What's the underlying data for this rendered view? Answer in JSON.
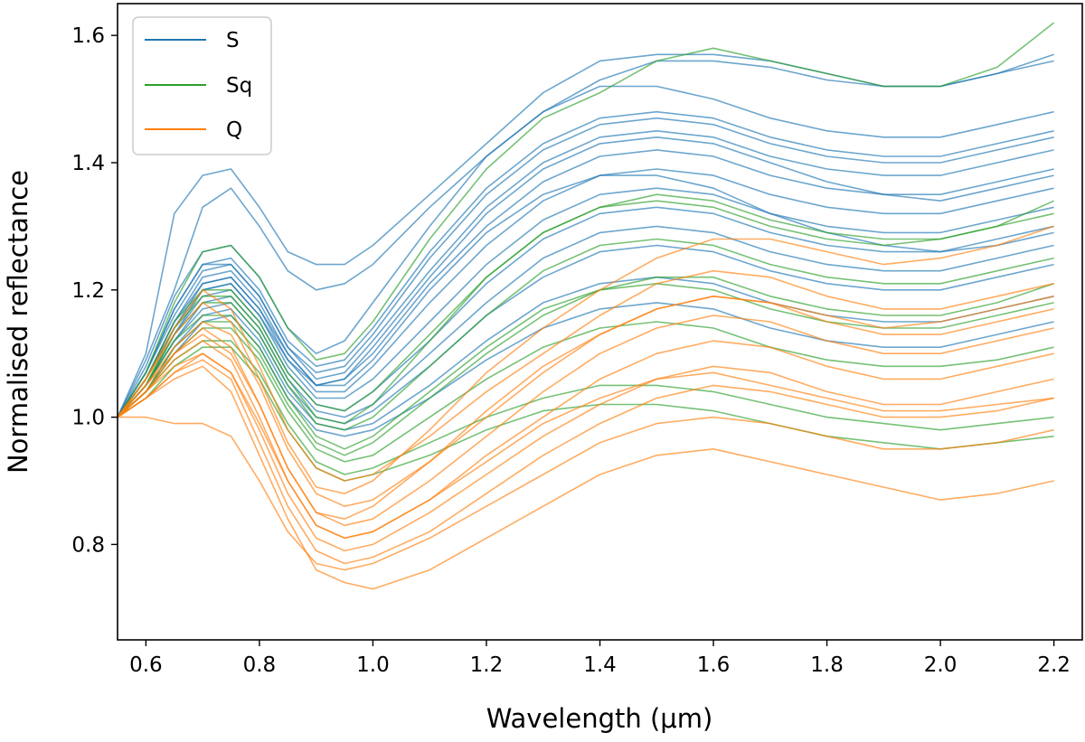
{
  "chart_data": {
    "type": "line",
    "title": "",
    "xlabel": "Wavelength (μm)",
    "ylabel": "Normalised reflectance",
    "xlim": [
      0.55,
      2.25
    ],
    "ylim": [
      0.65,
      1.65
    ],
    "xticks": [
      0.6,
      0.8,
      1.0,
      1.2,
      1.4,
      1.6,
      1.8,
      2.0,
      2.2
    ],
    "xtick_labels": [
      "0.6",
      "0.8",
      "1.0",
      "1.2",
      "1.4",
      "1.6",
      "1.8",
      "2.0",
      "2.2"
    ],
    "yticks": [
      0.8,
      1.0,
      1.2,
      1.4,
      1.6
    ],
    "ytick_labels": [
      "0.8",
      "1.0",
      "1.2",
      "1.4",
      "1.6"
    ],
    "grid": false,
    "legend": {
      "location": "top-left",
      "entries": [
        {
          "label": "S",
          "color": "#1f77b4"
        },
        {
          "label": "Sq",
          "color": "#2ca02c"
        },
        {
          "label": "Q",
          "color": "#ff7f0e"
        }
      ]
    },
    "x": [
      0.55,
      0.6,
      0.65,
      0.7,
      0.75,
      0.8,
      0.85,
      0.9,
      0.95,
      1.0,
      1.1,
      1.2,
      1.3,
      1.4,
      1.5,
      1.6,
      1.7,
      1.8,
      1.9,
      2.0,
      2.1,
      2.2
    ],
    "series": [
      {
        "name": "S",
        "class": "S",
        "color": "#1f77b4",
        "values": [
          1.0,
          1.1,
          1.32,
          1.38,
          1.39,
          1.33,
          1.26,
          1.24,
          1.24,
          1.27,
          1.35,
          1.43,
          1.51,
          1.56,
          1.57,
          1.57,
          1.56,
          1.54,
          1.52,
          1.52,
          1.54,
          1.57
        ]
      },
      {
        "name": "S",
        "class": "S",
        "color": "#1f77b4",
        "values": [
          1.0,
          1.09,
          1.2,
          1.33,
          1.36,
          1.3,
          1.23,
          1.2,
          1.21,
          1.24,
          1.33,
          1.41,
          1.48,
          1.53,
          1.56,
          1.56,
          1.55,
          1.53,
          1.52,
          1.52,
          1.54,
          1.56
        ]
      },
      {
        "name": "S",
        "class": "S",
        "color": "#1f77b4",
        "values": [
          1.0,
          1.08,
          1.19,
          1.26,
          1.27,
          1.22,
          1.14,
          1.1,
          1.12,
          1.18,
          1.3,
          1.41,
          1.48,
          1.52,
          1.52,
          1.5,
          1.47,
          1.45,
          1.44,
          1.44,
          1.46,
          1.48
        ]
      },
      {
        "name": "S",
        "class": "S",
        "color": "#1f77b4",
        "values": [
          1.0,
          1.07,
          1.17,
          1.24,
          1.25,
          1.2,
          1.12,
          1.08,
          1.09,
          1.14,
          1.26,
          1.36,
          1.43,
          1.47,
          1.48,
          1.47,
          1.44,
          1.42,
          1.41,
          1.41,
          1.43,
          1.45
        ]
      },
      {
        "name": "S",
        "class": "S",
        "color": "#1f77b4",
        "values": [
          1.0,
          1.07,
          1.16,
          1.23,
          1.24,
          1.19,
          1.11,
          1.06,
          1.07,
          1.12,
          1.23,
          1.33,
          1.4,
          1.44,
          1.45,
          1.44,
          1.41,
          1.39,
          1.38,
          1.38,
          1.4,
          1.42
        ]
      },
      {
        "name": "S",
        "class": "S",
        "color": "#1f77b4",
        "values": [
          1.0,
          1.06,
          1.15,
          1.22,
          1.23,
          1.18,
          1.1,
          1.05,
          1.06,
          1.1,
          1.21,
          1.3,
          1.37,
          1.41,
          1.42,
          1.41,
          1.38,
          1.36,
          1.35,
          1.35,
          1.37,
          1.39
        ]
      },
      {
        "name": "S",
        "class": "S",
        "color": "#1f77b4",
        "values": [
          1.0,
          1.06,
          1.14,
          1.21,
          1.22,
          1.17,
          1.09,
          1.04,
          1.04,
          1.08,
          1.18,
          1.27,
          1.34,
          1.38,
          1.39,
          1.38,
          1.35,
          1.33,
          1.32,
          1.32,
          1.34,
          1.36
        ]
      },
      {
        "name": "S",
        "class": "S",
        "color": "#1f77b4",
        "values": [
          1.0,
          1.06,
          1.14,
          1.2,
          1.21,
          1.16,
          1.08,
          1.03,
          1.03,
          1.06,
          1.15,
          1.24,
          1.31,
          1.35,
          1.36,
          1.35,
          1.32,
          1.3,
          1.29,
          1.29,
          1.31,
          1.33
        ]
      },
      {
        "name": "S",
        "class": "S",
        "color": "#1f77b4",
        "values": [
          1.0,
          1.05,
          1.13,
          1.19,
          1.2,
          1.15,
          1.07,
          1.02,
          1.01,
          1.04,
          1.12,
          1.21,
          1.28,
          1.32,
          1.33,
          1.32,
          1.29,
          1.27,
          1.26,
          1.26,
          1.28,
          1.3
        ]
      },
      {
        "name": "S",
        "class": "S",
        "color": "#1f77b4",
        "values": [
          1.0,
          1.05,
          1.12,
          1.18,
          1.19,
          1.14,
          1.06,
          1.01,
          1.0,
          1.02,
          1.1,
          1.18,
          1.25,
          1.29,
          1.3,
          1.29,
          1.26,
          1.24,
          1.23,
          1.23,
          1.25,
          1.27
        ]
      },
      {
        "name": "S",
        "class": "S",
        "color": "#1f77b4",
        "values": [
          1.0,
          1.05,
          1.12,
          1.17,
          1.18,
          1.13,
          1.05,
          1.0,
          0.99,
          1.01,
          1.08,
          1.16,
          1.22,
          1.26,
          1.27,
          1.26,
          1.23,
          1.21,
          1.2,
          1.2,
          1.22,
          1.24
        ]
      },
      {
        "name": "S",
        "class": "S",
        "color": "#1f77b4",
        "values": [
          1.0,
          1.04,
          1.11,
          1.16,
          1.17,
          1.12,
          1.04,
          0.99,
          0.98,
          0.99,
          1.05,
          1.12,
          1.18,
          1.21,
          1.22,
          1.21,
          1.18,
          1.16,
          1.15,
          1.15,
          1.17,
          1.19
        ]
      },
      {
        "name": "S",
        "class": "S",
        "color": "#1f77b4",
        "values": [
          1.0,
          1.04,
          1.1,
          1.15,
          1.16,
          1.11,
          1.03,
          0.98,
          0.97,
          0.98,
          1.03,
          1.09,
          1.14,
          1.17,
          1.18,
          1.17,
          1.14,
          1.12,
          1.11,
          1.11,
          1.13,
          1.15
        ]
      },
      {
        "name": "S",
        "class": "S",
        "color": "#1f77b4",
        "values": [
          1.0,
          1.05,
          1.13,
          1.2,
          1.21,
          1.16,
          1.09,
          1.05,
          1.06,
          1.11,
          1.22,
          1.32,
          1.39,
          1.43,
          1.44,
          1.43,
          1.4,
          1.37,
          1.35,
          1.34,
          1.36,
          1.38
        ]
      },
      {
        "name": "S",
        "class": "S",
        "color": "#1f77b4",
        "values": [
          1.0,
          1.06,
          1.15,
          1.21,
          1.22,
          1.17,
          1.1,
          1.05,
          1.05,
          1.09,
          1.2,
          1.29,
          1.35,
          1.38,
          1.38,
          1.36,
          1.32,
          1.29,
          1.27,
          1.26,
          1.27,
          1.29
        ]
      },
      {
        "name": "S",
        "class": "S",
        "color": "#1f77b4",
        "values": [
          1.0,
          1.07,
          1.17,
          1.24,
          1.24,
          1.19,
          1.11,
          1.07,
          1.08,
          1.13,
          1.25,
          1.35,
          1.42,
          1.46,
          1.47,
          1.46,
          1.43,
          1.41,
          1.4,
          1.4,
          1.42,
          1.44
        ]
      },
      {
        "name": "Sq",
        "class": "Sq",
        "color": "#2ca02c",
        "values": [
          1.0,
          1.07,
          1.18,
          1.26,
          1.27,
          1.22,
          1.14,
          1.09,
          1.1,
          1.15,
          1.28,
          1.39,
          1.47,
          1.51,
          1.56,
          1.58,
          1.56,
          1.54,
          1.52,
          1.52,
          1.55,
          1.62
        ]
      },
      {
        "name": "Sq",
        "class": "Sq",
        "color": "#2ca02c",
        "values": [
          1.0,
          1.06,
          1.15,
          1.2,
          1.2,
          1.15,
          1.07,
          1.02,
          1.01,
          1.04,
          1.13,
          1.22,
          1.29,
          1.33,
          1.35,
          1.34,
          1.31,
          1.29,
          1.28,
          1.28,
          1.3,
          1.32
        ]
      },
      {
        "name": "Sq",
        "class": "Sq",
        "color": "#2ca02c",
        "values": [
          1.0,
          1.05,
          1.13,
          1.18,
          1.18,
          1.13,
          1.05,
          0.99,
          0.98,
          1.0,
          1.08,
          1.16,
          1.23,
          1.27,
          1.28,
          1.27,
          1.24,
          1.22,
          1.21,
          1.21,
          1.23,
          1.25
        ]
      },
      {
        "name": "Sq",
        "class": "Sq",
        "color": "#2ca02c",
        "values": [
          1.0,
          1.05,
          1.12,
          1.16,
          1.16,
          1.11,
          1.03,
          0.97,
          0.95,
          0.97,
          1.04,
          1.11,
          1.17,
          1.2,
          1.21,
          1.2,
          1.17,
          1.15,
          1.14,
          1.14,
          1.16,
          1.18
        ]
      },
      {
        "name": "Sq",
        "class": "Sq",
        "color": "#2ca02c",
        "values": [
          1.0,
          1.04,
          1.1,
          1.14,
          1.14,
          1.09,
          1.01,
          0.95,
          0.93,
          0.94,
          1.0,
          1.06,
          1.11,
          1.14,
          1.15,
          1.14,
          1.11,
          1.09,
          1.08,
          1.08,
          1.09,
          1.11
        ]
      },
      {
        "name": "Sq",
        "class": "Sq",
        "color": "#2ca02c",
        "values": [
          1.0,
          1.04,
          1.09,
          1.12,
          1.12,
          1.07,
          0.99,
          0.93,
          0.91,
          0.92,
          0.96,
          1.0,
          1.03,
          1.05,
          1.05,
          1.04,
          1.02,
          1.0,
          0.99,
          0.98,
          0.99,
          1.0
        ]
      },
      {
        "name": "Sq",
        "class": "Sq",
        "color": "#2ca02c",
        "values": [
          1.0,
          1.03,
          1.08,
          1.11,
          1.11,
          1.06,
          0.98,
          0.92,
          0.9,
          0.91,
          0.94,
          0.98,
          1.01,
          1.02,
          1.02,
          1.01,
          0.99,
          0.97,
          0.96,
          0.95,
          0.96,
          0.97
        ]
      },
      {
        "name": "Sq",
        "class": "Sq",
        "color": "#2ca02c",
        "values": [
          1.0,
          1.05,
          1.14,
          1.19,
          1.19,
          1.14,
          1.06,
          1.0,
          0.99,
          1.02,
          1.12,
          1.22,
          1.29,
          1.33,
          1.34,
          1.33,
          1.3,
          1.28,
          1.27,
          1.28,
          1.3,
          1.34
        ]
      },
      {
        "name": "Sq",
        "class": "Sq",
        "color": "#2ca02c",
        "values": [
          1.0,
          1.04,
          1.11,
          1.15,
          1.15,
          1.1,
          1.02,
          0.96,
          0.94,
          0.96,
          1.03,
          1.1,
          1.16,
          1.2,
          1.22,
          1.22,
          1.19,
          1.17,
          1.16,
          1.16,
          1.18,
          1.21
        ]
      },
      {
        "name": "Q",
        "class": "Q",
        "color": "#ff7f0e",
        "values": [
          1.0,
          1.06,
          1.14,
          1.2,
          1.17,
          1.08,
          0.98,
          0.92,
          0.9,
          0.91,
          0.97,
          1.04,
          1.1,
          1.16,
          1.21,
          1.23,
          1.22,
          1.19,
          1.17,
          1.17,
          1.19,
          1.21
        ]
      },
      {
        "name": "Q",
        "class": "Q",
        "color": "#ff7f0e",
        "values": [
          1.0,
          1.05,
          1.11,
          1.15,
          1.13,
          1.05,
          0.95,
          0.88,
          0.86,
          0.87,
          0.93,
          1.0,
          1.07,
          1.13,
          1.17,
          1.19,
          1.18,
          1.15,
          1.13,
          1.13,
          1.15,
          1.17
        ]
      },
      {
        "name": "Q",
        "class": "Q",
        "color": "#ff7f0e",
        "values": [
          1.0,
          1.05,
          1.1,
          1.13,
          1.1,
          1.02,
          0.92,
          0.85,
          0.83,
          0.84,
          0.9,
          0.97,
          1.04,
          1.1,
          1.14,
          1.16,
          1.15,
          1.12,
          1.1,
          1.1,
          1.12,
          1.14
        ]
      },
      {
        "name": "Q",
        "class": "Q",
        "color": "#ff7f0e",
        "values": [
          1.0,
          1.04,
          1.09,
          1.12,
          1.09,
          1.0,
          0.9,
          0.83,
          0.81,
          0.82,
          0.87,
          0.94,
          1.0,
          1.06,
          1.1,
          1.12,
          1.11,
          1.08,
          1.06,
          1.06,
          1.08,
          1.1
        ]
      },
      {
        "name": "Q",
        "class": "Q",
        "color": "#ff7f0e",
        "values": [
          1.0,
          1.04,
          1.08,
          1.1,
          1.07,
          0.98,
          0.88,
          0.81,
          0.79,
          0.8,
          0.85,
          0.91,
          0.97,
          1.02,
          1.06,
          1.08,
          1.07,
          1.04,
          1.02,
          1.02,
          1.04,
          1.06
        ]
      },
      {
        "name": "Q",
        "class": "Q",
        "color": "#ff7f0e",
        "values": [
          1.0,
          1.03,
          1.07,
          1.09,
          1.06,
          0.96,
          0.86,
          0.79,
          0.77,
          0.78,
          0.82,
          0.88,
          0.94,
          0.99,
          1.03,
          1.05,
          1.04,
          1.02,
          1.0,
          1.0,
          1.01,
          1.03
        ]
      },
      {
        "name": "Q",
        "class": "Q",
        "color": "#ff7f0e",
        "values": [
          1.0,
          1.03,
          1.06,
          1.08,
          1.04,
          0.94,
          0.84,
          0.76,
          0.74,
          0.73,
          0.76,
          0.81,
          0.86,
          0.91,
          0.94,
          0.95,
          0.93,
          0.91,
          0.89,
          0.87,
          0.88,
          0.9
        ]
      },
      {
        "name": "Q",
        "class": "Q",
        "color": "#ff7f0e",
        "values": [
          1.0,
          1.0,
          0.99,
          0.99,
          0.97,
          0.9,
          0.82,
          0.77,
          0.76,
          0.77,
          0.81,
          0.86,
          0.91,
          0.96,
          0.99,
          1.0,
          0.99,
          0.97,
          0.95,
          0.95,
          0.96,
          0.98
        ]
      },
      {
        "name": "Q",
        "class": "Q",
        "color": "#ff7f0e",
        "values": [
          1.0,
          1.06,
          1.13,
          1.18,
          1.15,
          1.06,
          0.96,
          0.89,
          0.88,
          0.9,
          0.98,
          1.07,
          1.14,
          1.2,
          1.25,
          1.28,
          1.28,
          1.26,
          1.24,
          1.25,
          1.27,
          1.3
        ]
      },
      {
        "name": "Q",
        "class": "Q",
        "color": "#ff7f0e",
        "values": [
          1.0,
          1.04,
          1.1,
          1.14,
          1.11,
          1.02,
          0.92,
          0.85,
          0.84,
          0.86,
          0.93,
          1.01,
          1.08,
          1.13,
          1.17,
          1.19,
          1.18,
          1.16,
          1.14,
          1.15,
          1.17,
          1.19
        ]
      },
      {
        "name": "Q",
        "class": "Q",
        "color": "#ff7f0e",
        "values": [
          1.0,
          1.03,
          1.07,
          1.1,
          1.07,
          0.99,
          0.9,
          0.83,
          0.81,
          0.82,
          0.87,
          0.93,
          0.99,
          1.03,
          1.06,
          1.07,
          1.05,
          1.03,
          1.01,
          1.01,
          1.02,
          1.03
        ]
      }
    ]
  }
}
